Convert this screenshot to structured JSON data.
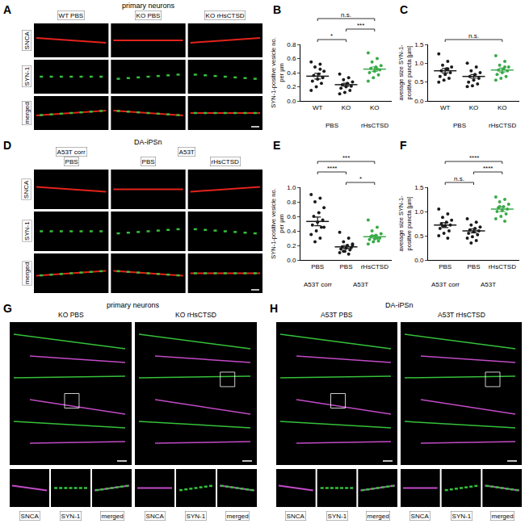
{
  "panels": [
    {
      "panel_letter": "A",
      "header": "primary neurons",
      "columns": [
        "WT PBS",
        "KO PBS",
        "KO rHsCTSD"
      ],
      "rows": [
        "SNCA",
        "SYN-1",
        "merged"
      ]
    },
    {
      "panel_letter": "D",
      "header": "DA-iPSn",
      "column_groups": [
        {
          "label": "A53T corr",
          "columns": [
            "PBS"
          ]
        },
        {
          "label": "A53T",
          "columns": [
            "PBS",
            "rHsCTSD"
          ]
        }
      ],
      "rows": [
        "SNCA",
        "SYN-1",
        "merged"
      ]
    },
    {
      "panel_letter": "G",
      "header": "primary neurons",
      "columns": [
        "KO PBS",
        "KO rHsCTSD"
      ],
      "inset_labels": [
        "SNCA",
        "SYN-1",
        "merged"
      ]
    },
    {
      "panel_letter": "H",
      "header": "DA-iPSn",
      "columns": [
        "A53T PBS",
        "A53T rHsCTSD"
      ],
      "inset_labels": [
        "SNCA",
        "SYN-1",
        "merged"
      ]
    }
  ],
  "chart_data": [
    {
      "panel_letter": "B",
      "type": "scatter",
      "categories": [
        "WT",
        "KO",
        "KO"
      ],
      "groups": [
        {
          "label": "PBS",
          "from": 0,
          "to": 1
        },
        {
          "label": "rHsCTSD",
          "from": 2,
          "to": 2
        }
      ],
      "y_label": "SYN-1-positive vesicle no.\nper µm",
      "ylim": [
        0,
        0.8
      ],
      "yticks": [
        {
          "value": 0,
          "label": "0.0"
        },
        0.2,
        0.4,
        0.6,
        0.8
      ],
      "colors": [
        "#1a1a1a",
        "#1a1a1a",
        "#3aaa4a"
      ],
      "values": [
        0.35,
        0.23,
        0.45
      ],
      "errors": [
        0.04,
        0.02,
        0.03
      ],
      "points": [
        [
          0.55,
          0.52,
          0.48,
          0.42,
          0.38,
          0.36,
          0.33,
          0.31,
          0.28,
          0.25,
          0.2,
          0.15,
          0.45
        ],
        [
          0.38,
          0.33,
          0.3,
          0.27,
          0.25,
          0.23,
          0.21,
          0.2,
          0.18,
          0.15,
          0.12,
          0.1
        ],
        [
          0.68,
          0.6,
          0.55,
          0.5,
          0.48,
          0.46,
          0.44,
          0.42,
          0.4,
          0.37,
          0.33,
          0.28,
          0.45
        ]
      ],
      "significance": [
        {
          "from": 0,
          "to": 1,
          "text": "*"
        },
        {
          "from": 1,
          "to": 2,
          "text": "***"
        },
        {
          "from": 0,
          "to": 2,
          "text": "n.s."
        }
      ]
    },
    {
      "panel_letter": "C",
      "type": "scatter",
      "categories": [
        "WT",
        "KO",
        "KO"
      ],
      "groups": [
        {
          "label": "PBS",
          "from": 0,
          "to": 1
        },
        {
          "label": "rHsCTSD",
          "from": 2,
          "to": 2
        }
      ],
      "y_label": "average size SYN-1-\npositive puncta [µm]",
      "ylim": [
        0,
        1.5
      ],
      "yticks": [
        {
          "value": 0,
          "label": "0.0"
        },
        0.5,
        {
          "value": 1,
          "label": "1.0"
        },
        1.5
      ],
      "colors": [
        "#1a1a1a",
        "#1a1a1a",
        "#3aaa4a"
      ],
      "values": [
        0.8,
        0.65,
        0.82
      ],
      "errors": [
        0.06,
        0.05,
        0.05
      ],
      "points": [
        [
          1.25,
          1.05,
          0.95,
          0.9,
          0.85,
          0.8,
          0.75,
          0.7,
          0.65,
          0.6,
          0.55,
          0.5,
          0.85
        ],
        [
          1.0,
          0.9,
          0.8,
          0.75,
          0.7,
          0.65,
          0.6,
          0.55,
          0.5,
          0.45,
          0.4,
          0.38
        ],
        [
          1.2,
          1.05,
          0.95,
          0.9,
          0.85,
          0.82,
          0.8,
          0.75,
          0.7,
          0.65,
          0.6,
          0.55,
          0.9
        ]
      ],
      "significance": [
        {
          "from": 0,
          "to": 2,
          "text": "n.s."
        }
      ]
    },
    {
      "panel_letter": "E",
      "type": "scatter",
      "categories": [
        "PBS",
        "PBS",
        "rHsCTSD"
      ],
      "groups": [
        {
          "label": "A53T corr",
          "from": 0,
          "to": 0
        },
        {
          "label": "A53T",
          "from": 1,
          "to": 2
        }
      ],
      "y_label": "SYN-1-positive vesicle no.\nper µm",
      "ylim": [
        0,
        1.0
      ],
      "yticks": [
        {
          "value": 0,
          "label": "0.0"
        },
        0.2,
        0.4,
        0.6,
        0.8,
        {
          "value": 1,
          "label": "1.0"
        }
      ],
      "colors": [
        "#1a1a1a",
        "#1a1a1a",
        "#3aaa4a"
      ],
      "values": [
        0.53,
        0.18,
        0.32
      ],
      "errors": [
        0.06,
        0.02,
        0.02
      ],
      "points": [
        [
          0.9,
          0.85,
          0.8,
          0.72,
          0.65,
          0.6,
          0.55,
          0.52,
          0.48,
          0.45,
          0.4,
          0.35,
          0.3,
          0.25,
          0.45
        ],
        [
          0.38,
          0.3,
          0.25,
          0.22,
          0.2,
          0.18,
          0.17,
          0.16,
          0.15,
          0.14,
          0.12,
          0.1,
          0.08,
          0.12,
          0.2
        ],
        [
          0.55,
          0.45,
          0.4,
          0.36,
          0.34,
          0.32,
          0.3,
          0.29,
          0.28,
          0.26,
          0.25,
          0.22,
          0.3,
          0.33
        ]
      ],
      "significance": [
        {
          "from": 1,
          "to": 2,
          "text": "*"
        },
        {
          "from": 0,
          "to": 1,
          "text": "****"
        },
        {
          "from": 0,
          "to": 2,
          "text": "***"
        }
      ]
    },
    {
      "panel_letter": "F",
      "type": "scatter",
      "categories": [
        "PBS",
        "PBS",
        "rHsCTSD"
      ],
      "groups": [
        {
          "label": "A53T corr",
          "from": 0,
          "to": 0
        },
        {
          "label": "A53T",
          "from": 1,
          "to": 2
        }
      ],
      "y_label": "average size SYN-1-\npositive puncta [µm]",
      "ylim": [
        0,
        1.5
      ],
      "yticks": [
        {
          "value": 0,
          "label": "0.0"
        },
        0.5,
        {
          "value": 1,
          "label": "1.0"
        },
        1.5
      ],
      "colors": [
        "#1a1a1a",
        "#1a1a1a",
        "#3aaa4a"
      ],
      "values": [
        0.72,
        0.6,
        1.05
      ],
      "errors": [
        0.05,
        0.04,
        0.05
      ],
      "points": [
        [
          1.05,
          0.95,
          0.88,
          0.82,
          0.78,
          0.75,
          0.72,
          0.7,
          0.65,
          0.6,
          0.55,
          0.5,
          0.45,
          0.7
        ],
        [
          0.85,
          0.78,
          0.72,
          0.68,
          0.65,
          0.62,
          0.6,
          0.58,
          0.55,
          0.52,
          0.48,
          0.45,
          0.4,
          0.35
        ],
        [
          1.3,
          1.25,
          1.2,
          1.15,
          1.1,
          1.08,
          1.05,
          1.02,
          1.0,
          0.95,
          0.9,
          0.85,
          0.8,
          1.1
        ]
      ],
      "significance": [
        {
          "from": 0,
          "to": 1,
          "text": "n.s."
        },
        {
          "from": 1,
          "to": 2,
          "text": "****"
        },
        {
          "from": 0,
          "to": 2,
          "text": "****"
        }
      ]
    }
  ]
}
